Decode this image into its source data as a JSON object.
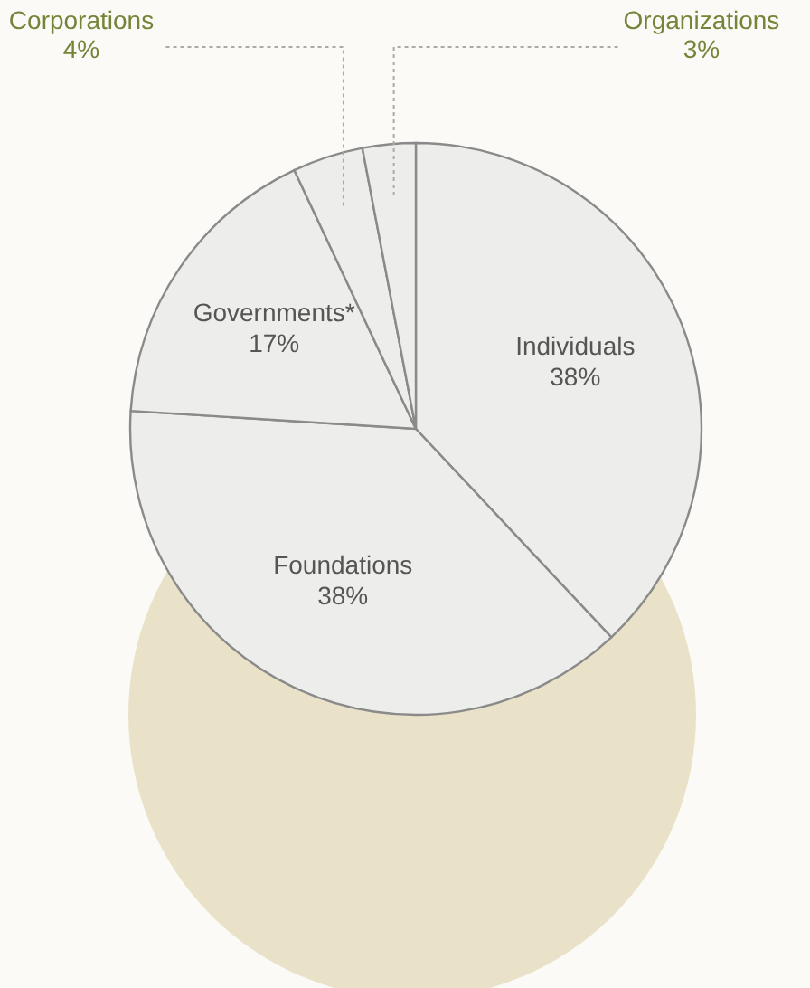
{
  "chart_data": {
    "type": "pie",
    "categories": [
      "Individuals",
      "Foundations",
      "Governments*",
      "Corporations",
      "Organizations"
    ],
    "values": [
      38,
      38,
      17,
      4,
      3
    ],
    "colors": [
      "#ededeb",
      "#ededeb",
      "#ededeb",
      "#ededeb",
      "#ededeb"
    ],
    "value_labels": [
      "38%",
      "38%",
      "17%",
      "4%",
      "3%"
    ]
  }
}
